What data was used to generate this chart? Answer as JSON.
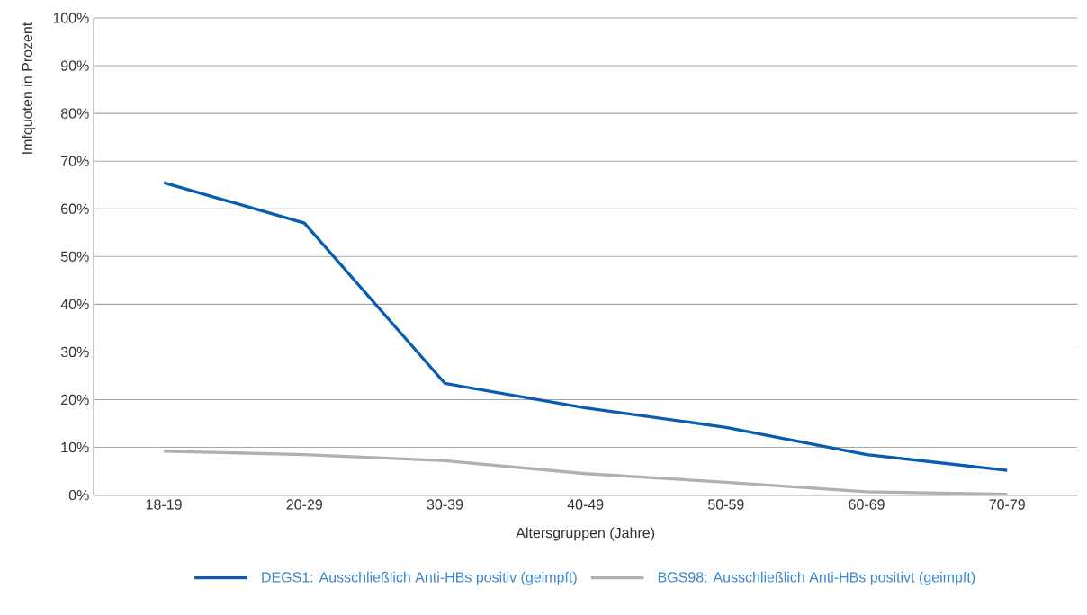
{
  "chart_data": {
    "type": "line",
    "xlabel": "Altersgruppen (Jahre)",
    "ylabel": "Imfquoten in Prozent",
    "categories": [
      "18-19",
      "20-29",
      "30-39",
      "40-49",
      "50-59",
      "60-69",
      "70-79"
    ],
    "series": [
      {
        "name": "DEGS1: Ausschließlich Anti-HBs positiv (geimpft)",
        "color": "#0a5cb0",
        "values": [
          65.5,
          57.0,
          23.4,
          18.3,
          14.2,
          8.5,
          5.2
        ]
      },
      {
        "name": "BGS98: Ausschließlich Anti-HBs positivt (geimpft)",
        "color": "#b0b0b0",
        "values": [
          9.2,
          8.5,
          7.2,
          4.5,
          2.7,
          0.7,
          0.2
        ]
      }
    ],
    "ylim": [
      0,
      100
    ],
    "yticks": [
      {
        "value": 0,
        "label": "0%"
      },
      {
        "value": 10,
        "label": "10%"
      },
      {
        "value": 20,
        "label": "20%"
      },
      {
        "value": 30,
        "label": "30%"
      },
      {
        "value": 40,
        "label": "40%"
      },
      {
        "value": 50,
        "label": "50%"
      },
      {
        "value": 60,
        "label": "60%"
      },
      {
        "value": 70,
        "label": "70%"
      },
      {
        "value": 80,
        "label": "80%"
      },
      {
        "value": 90,
        "label": "90%"
      },
      {
        "value": 100,
        "label": "100%"
      }
    ],
    "grid": "y",
    "legend": "bottom",
    "marker": "none",
    "line_style": "solid"
  }
}
